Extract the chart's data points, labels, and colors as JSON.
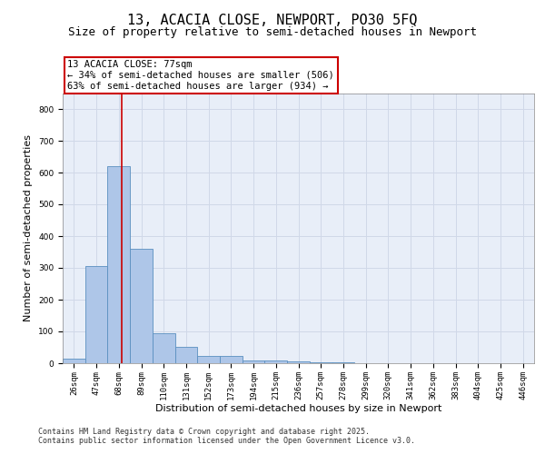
{
  "title1": "13, ACACIA CLOSE, NEWPORT, PO30 5FQ",
  "title2": "Size of property relative to semi-detached houses in Newport",
  "xlabel": "Distribution of semi-detached houses by size in Newport",
  "ylabel": "Number of semi-detached properties",
  "categories": [
    "26sqm",
    "47sqm",
    "68sqm",
    "89sqm",
    "110sqm",
    "131sqm",
    "152sqm",
    "173sqm",
    "194sqm",
    "215sqm",
    "236sqm",
    "257sqm",
    "278sqm",
    "299sqm",
    "320sqm",
    "341sqm",
    "362sqm",
    "383sqm",
    "404sqm",
    "425sqm",
    "446sqm"
  ],
  "values": [
    15,
    305,
    620,
    360,
    95,
    52,
    22,
    22,
    10,
    8,
    5,
    3,
    2,
    1,
    1,
    0,
    0,
    0,
    0,
    0,
    0
  ],
  "bar_color": "#aec6e8",
  "bar_edge_color": "#5a8fc0",
  "annotation_title": "13 ACACIA CLOSE: 77sqm",
  "annotation_line1": "← 34% of semi-detached houses are smaller (506)",
  "annotation_line2": "63% of semi-detached houses are larger (934) →",
  "annotation_box_color": "#ffffff",
  "annotation_box_edge": "#cc0000",
  "vline_color": "#cc0000",
  "vline_x": 2.15,
  "ylim": [
    0,
    850
  ],
  "yticks": [
    0,
    100,
    200,
    300,
    400,
    500,
    600,
    700,
    800
  ],
  "grid_color": "#d0d8e8",
  "bg_color": "#e8eef8",
  "footer1": "Contains HM Land Registry data © Crown copyright and database right 2025.",
  "footer2": "Contains public sector information licensed under the Open Government Licence v3.0.",
  "title1_fontsize": 11,
  "title2_fontsize": 9,
  "tick_fontsize": 6.5,
  "ylabel_fontsize": 8,
  "xlabel_fontsize": 8,
  "annotation_fontsize": 7.5,
  "footer_fontsize": 6
}
